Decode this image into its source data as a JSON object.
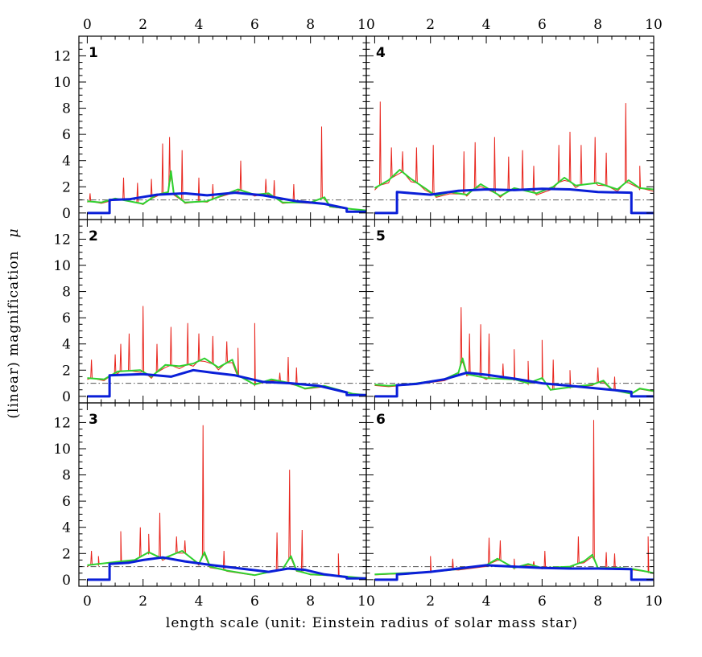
{
  "chart_data": {
    "type": "line",
    "layout": "3 rows x 2 columns of panels sharing axes",
    "xlabel": "length scale (unit: Einstein radius of solar mass star)",
    "ylabel": "(linear) magnification",
    "ylabel_symbol": "μ",
    "xlim": [
      -0.3,
      10.0
    ],
    "ylim": [
      -0.5,
      13.5
    ],
    "x_ticks": [
      0,
      2,
      4,
      6,
      8,
      10
    ],
    "x_tick_labels": [
      "0",
      "2",
      "4",
      "6",
      "8",
      "10"
    ],
    "y_ticks": [
      0,
      2,
      4,
      6,
      8,
      10,
      12
    ],
    "y_tick_labels": [
      "0",
      "2",
      "4",
      "6",
      "8",
      "10",
      "12"
    ],
    "reference_line_y": 1.0,
    "colors": {
      "red": "#e8241c",
      "green": "#2ed12e",
      "blue": "#0a1fd8",
      "reference": "#555555"
    },
    "panels": [
      {
        "label": "1",
        "position": "left-top",
        "blue": [
          [
            0,
            0
          ],
          [
            0.8,
            0
          ],
          [
            0.8,
            1.0
          ],
          [
            1.5,
            1.05
          ],
          [
            2.5,
            1.4
          ],
          [
            3.5,
            1.5
          ],
          [
            4.3,
            1.35
          ],
          [
            5.3,
            1.55
          ],
          [
            6.3,
            1.35
          ],
          [
            7.5,
            0.9
          ],
          [
            8.5,
            0.7
          ],
          [
            9.3,
            0.35
          ],
          [
            9.3,
            0.1
          ],
          [
            10,
            0.1
          ]
        ],
        "green": [
          [
            0,
            0.9
          ],
          [
            0.5,
            0.8
          ],
          [
            1.0,
            1.1
          ],
          [
            2.0,
            0.7
          ],
          [
            2.5,
            1.4
          ],
          [
            2.9,
            1.6
          ],
          [
            3.0,
            3.2
          ],
          [
            3.1,
            1.5
          ],
          [
            3.5,
            0.8
          ],
          [
            4.3,
            0.9
          ],
          [
            5.4,
            1.8
          ],
          [
            6.0,
            1.4
          ],
          [
            6.5,
            1.5
          ],
          [
            7.0,
            0.8
          ],
          [
            8.0,
            0.8
          ],
          [
            8.5,
            1.2
          ],
          [
            8.7,
            0.5
          ],
          [
            9.5,
            0.3
          ],
          [
            10,
            0.2
          ]
        ],
        "red_spikes": [
          [
            0.1,
            1.5
          ],
          [
            1.3,
            2.7
          ],
          [
            1.8,
            2.3
          ],
          [
            2.3,
            2.6
          ],
          [
            2.7,
            5.3
          ],
          [
            2.95,
            5.8
          ],
          [
            3.4,
            4.8
          ],
          [
            4.0,
            2.7
          ],
          [
            4.5,
            2.2
          ],
          [
            5.5,
            4.0
          ],
          [
            6.4,
            2.6
          ],
          [
            6.7,
            2.5
          ],
          [
            7.4,
            2.2
          ],
          [
            8.4,
            6.6
          ]
        ]
      },
      {
        "label": "2",
        "position": "left-middle",
        "blue": [
          [
            0,
            0
          ],
          [
            0.8,
            0
          ],
          [
            0.8,
            1.6
          ],
          [
            2.0,
            1.7
          ],
          [
            3.0,
            1.5
          ],
          [
            3.8,
            2.0
          ],
          [
            4.5,
            1.8
          ],
          [
            5.3,
            1.6
          ],
          [
            6.3,
            1.1
          ],
          [
            7.3,
            1.0
          ],
          [
            8.3,
            0.8
          ],
          [
            9.3,
            0.3
          ],
          [
            9.3,
            0.1
          ],
          [
            10,
            0.1
          ]
        ],
        "green": [
          [
            0,
            1.4
          ],
          [
            0.6,
            1.3
          ],
          [
            1.1,
            1.9
          ],
          [
            1.9,
            2.0
          ],
          [
            2.3,
            1.5
          ],
          [
            2.8,
            2.4
          ],
          [
            3.3,
            2.3
          ],
          [
            3.8,
            2.5
          ],
          [
            4.2,
            2.9
          ],
          [
            4.7,
            2.2
          ],
          [
            5.2,
            2.8
          ],
          [
            5.4,
            1.6
          ],
          [
            6.0,
            0.9
          ],
          [
            6.6,
            1.3
          ],
          [
            7.3,
            1.0
          ],
          [
            7.8,
            0.6
          ],
          [
            8.5,
            0.8
          ],
          [
            9.5,
            0.2
          ],
          [
            10,
            0.1
          ]
        ],
        "red_spikes": [
          [
            0.15,
            2.8
          ],
          [
            1.0,
            3.2
          ],
          [
            1.2,
            4.0
          ],
          [
            1.5,
            4.8
          ],
          [
            2.0,
            6.9
          ],
          [
            2.5,
            4.0
          ],
          [
            3.0,
            5.3
          ],
          [
            3.6,
            5.6
          ],
          [
            4.0,
            4.8
          ],
          [
            4.5,
            4.6
          ],
          [
            5.0,
            4.2
          ],
          [
            5.4,
            3.7
          ],
          [
            6.0,
            5.6
          ],
          [
            6.9,
            1.8
          ],
          [
            7.2,
            3.0
          ],
          [
            7.5,
            2.2
          ]
        ]
      },
      {
        "label": "3",
        "position": "left-bottom",
        "blue": [
          [
            0,
            0
          ],
          [
            0.8,
            0
          ],
          [
            0.8,
            1.2
          ],
          [
            1.5,
            1.3
          ],
          [
            2.0,
            1.5
          ],
          [
            2.7,
            1.7
          ],
          [
            3.5,
            1.4
          ],
          [
            4.5,
            1.1
          ],
          [
            5.5,
            0.85
          ],
          [
            6.5,
            0.6
          ],
          [
            7.2,
            0.85
          ],
          [
            7.8,
            0.75
          ],
          [
            8.5,
            0.4
          ],
          [
            9.3,
            0.2
          ],
          [
            9.3,
            0.1
          ],
          [
            10,
            0.1
          ]
        ],
        "green": [
          [
            0,
            1.1
          ],
          [
            0.4,
            1.2
          ],
          [
            1.2,
            1.4
          ],
          [
            1.7,
            1.5
          ],
          [
            2.2,
            2.1
          ],
          [
            2.7,
            1.6
          ],
          [
            3.4,
            2.2
          ],
          [
            4.0,
            1.2
          ],
          [
            4.2,
            2.1
          ],
          [
            4.4,
            1.0
          ],
          [
            5.0,
            0.7
          ],
          [
            6.0,
            0.35
          ],
          [
            7.0,
            0.8
          ],
          [
            7.3,
            1.8
          ],
          [
            7.5,
            0.7
          ],
          [
            8.0,
            0.4
          ],
          [
            9.0,
            0.3
          ],
          [
            10,
            0.1
          ]
        ],
        "red_spikes": [
          [
            0.15,
            2.2
          ],
          [
            0.4,
            1.8
          ],
          [
            1.2,
            3.7
          ],
          [
            1.9,
            4.0
          ],
          [
            2.2,
            3.5
          ],
          [
            2.6,
            5.1
          ],
          [
            3.2,
            3.3
          ],
          [
            3.5,
            3.0
          ],
          [
            4.15,
            11.8
          ],
          [
            4.9,
            2.2
          ],
          [
            6.8,
            3.6
          ],
          [
            7.25,
            8.4
          ],
          [
            7.7,
            3.8
          ],
          [
            9.0,
            2.0
          ]
        ]
      },
      {
        "label": "4",
        "position": "right-top",
        "blue": [
          [
            0,
            0
          ],
          [
            0.8,
            0
          ],
          [
            0.8,
            1.6
          ],
          [
            2.0,
            1.4
          ],
          [
            3.0,
            1.7
          ],
          [
            4.0,
            1.8
          ],
          [
            5.0,
            1.75
          ],
          [
            6.0,
            1.85
          ],
          [
            7.0,
            1.8
          ],
          [
            8.0,
            1.6
          ],
          [
            9.2,
            1.55
          ],
          [
            9.2,
            0
          ],
          [
            10,
            0
          ]
        ],
        "green": [
          [
            0,
            1.9
          ],
          [
            0.5,
            2.5
          ],
          [
            0.9,
            3.3
          ],
          [
            1.3,
            2.6
          ],
          [
            1.8,
            1.9
          ],
          [
            2.2,
            1.3
          ],
          [
            2.7,
            1.6
          ],
          [
            3.3,
            1.4
          ],
          [
            3.8,
            2.2
          ],
          [
            4.5,
            1.3
          ],
          [
            5.0,
            1.9
          ],
          [
            5.8,
            1.5
          ],
          [
            6.4,
            2.0
          ],
          [
            6.8,
            2.7
          ],
          [
            7.2,
            2.1
          ],
          [
            8.0,
            2.3
          ],
          [
            8.7,
            1.8
          ],
          [
            9.1,
            2.5
          ],
          [
            9.5,
            1.9
          ],
          [
            10,
            1.8
          ]
        ],
        "red_spikes": [
          [
            0.2,
            8.5
          ],
          [
            0.6,
            5.0
          ],
          [
            1.0,
            4.7
          ],
          [
            1.5,
            5.0
          ],
          [
            2.1,
            5.2
          ],
          [
            3.2,
            4.7
          ],
          [
            3.6,
            5.4
          ],
          [
            4.3,
            5.8
          ],
          [
            4.8,
            4.3
          ],
          [
            5.3,
            4.8
          ],
          [
            5.7,
            3.6
          ],
          [
            6.6,
            5.2
          ],
          [
            7.0,
            6.2
          ],
          [
            7.4,
            5.2
          ],
          [
            7.9,
            5.8
          ],
          [
            8.3,
            4.6
          ],
          [
            9.0,
            8.4
          ],
          [
            9.5,
            3.6
          ]
        ]
      },
      {
        "label": "5",
        "position": "right-middle",
        "blue": [
          [
            0,
            0
          ],
          [
            0.8,
            0
          ],
          [
            0.8,
            0.85
          ],
          [
            1.5,
            0.95
          ],
          [
            2.5,
            1.3
          ],
          [
            3.3,
            1.8
          ],
          [
            4.0,
            1.65
          ],
          [
            5.0,
            1.35
          ],
          [
            6.0,
            1.0
          ],
          [
            7.0,
            0.8
          ],
          [
            8.0,
            0.6
          ],
          [
            9.2,
            0.35
          ],
          [
            9.2,
            0
          ],
          [
            10,
            0
          ]
        ],
        "green": [
          [
            0,
            0.9
          ],
          [
            0.5,
            0.8
          ],
          [
            1.5,
            1.0
          ],
          [
            2.5,
            1.3
          ],
          [
            3.0,
            1.8
          ],
          [
            3.15,
            2.9
          ],
          [
            3.3,
            1.7
          ],
          [
            4.0,
            1.4
          ],
          [
            5.0,
            1.3
          ],
          [
            5.5,
            1.0
          ],
          [
            6.0,
            1.4
          ],
          [
            6.3,
            0.5
          ],
          [
            7.0,
            0.7
          ],
          [
            7.8,
            0.9
          ],
          [
            8.2,
            1.2
          ],
          [
            8.5,
            0.5
          ],
          [
            9.2,
            0.2
          ],
          [
            9.5,
            0.6
          ],
          [
            10,
            0.4
          ]
        ],
        "red_spikes": [
          [
            3.1,
            6.8
          ],
          [
            3.4,
            4.8
          ],
          [
            3.8,
            5.5
          ],
          [
            4.1,
            4.8
          ],
          [
            4.6,
            2.5
          ],
          [
            5.0,
            3.6
          ],
          [
            5.5,
            2.7
          ],
          [
            6.0,
            4.3
          ],
          [
            6.4,
            2.8
          ],
          [
            7.0,
            2.0
          ],
          [
            8.0,
            2.2
          ],
          [
            8.6,
            1.5
          ]
        ]
      },
      {
        "label": "6",
        "position": "right-bottom",
        "blue": [
          [
            0,
            0
          ],
          [
            0.8,
            0
          ],
          [
            0.8,
            0.4
          ],
          [
            2.0,
            0.6
          ],
          [
            3.0,
            0.85
          ],
          [
            4.0,
            1.1
          ],
          [
            5.0,
            1.0
          ],
          [
            6.0,
            0.9
          ],
          [
            7.0,
            0.85
          ],
          [
            8.0,
            0.85
          ],
          [
            9.2,
            0.8
          ],
          [
            9.2,
            0
          ],
          [
            10,
            0
          ]
        ],
        "green": [
          [
            0,
            0.4
          ],
          [
            1.0,
            0.5
          ],
          [
            2.0,
            0.6
          ],
          [
            3.0,
            0.8
          ],
          [
            4.0,
            1.1
          ],
          [
            4.4,
            1.6
          ],
          [
            5.0,
            0.9
          ],
          [
            5.5,
            1.2
          ],
          [
            6.0,
            0.9
          ],
          [
            7.0,
            1.0
          ],
          [
            7.5,
            1.4
          ],
          [
            7.8,
            1.9
          ],
          [
            8.0,
            0.9
          ],
          [
            8.8,
            0.9
          ],
          [
            9.3,
            0.8
          ],
          [
            9.8,
            0.6
          ],
          [
            10,
            0.5
          ]
        ],
        "red_spikes": [
          [
            2.0,
            1.8
          ],
          [
            2.8,
            1.6
          ],
          [
            4.1,
            3.2
          ],
          [
            4.5,
            3.0
          ],
          [
            5.0,
            1.6
          ],
          [
            5.7,
            1.4
          ],
          [
            6.1,
            2.2
          ],
          [
            7.3,
            3.3
          ],
          [
            7.85,
            12.2
          ],
          [
            8.3,
            2.1
          ],
          [
            8.6,
            2.0
          ],
          [
            9.8,
            3.3
          ]
        ]
      }
    ]
  }
}
